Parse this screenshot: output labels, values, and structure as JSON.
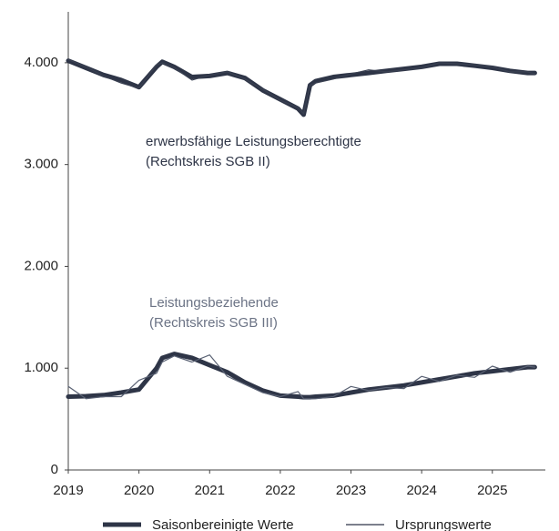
{
  "chart_data": {
    "type": "line",
    "x": [
      2019,
      2019.25,
      2019.5,
      2019.75,
      2020,
      2020.25,
      2020.33,
      2020.5,
      2020.75,
      2021,
      2021.25,
      2021.5,
      2021.75,
      2022,
      2022.25,
      2022.33,
      2022.42,
      2022.5,
      2022.75,
      2023,
      2023.25,
      2023.5,
      2023.75,
      2024,
      2024.25,
      2024.5,
      2024.75,
      2025,
      2025.25,
      2025.5,
      2025.6
    ],
    "series": [
      {
        "legend": 0,
        "color": "#2e3547",
        "width": 5,
        "values": [
          4020,
          3950,
          3880,
          3830,
          3760,
          3960,
          4010,
          3960,
          3860,
          3870,
          3900,
          3850,
          3730,
          3640,
          3550,
          3490,
          3780,
          3820,
          3860,
          3880,
          3900,
          3920,
          3940,
          3960,
          3990,
          3990,
          3970,
          3950,
          3920,
          3900,
          3900
        ]
      },
      {
        "legend": 0,
        "color": "#2e3547",
        "width": 5,
        "values": [
          720,
          725,
          735,
          760,
          790,
          1000,
          1100,
          1140,
          1100,
          1030,
          960,
          860,
          780,
          730,
          720,
          715,
          715,
          720,
          730,
          760,
          790,
          810,
          830,
          860,
          890,
          920,
          950,
          970,
          990,
          1010,
          1010
        ]
      },
      {
        "legend": 1,
        "color": "#3a4152",
        "width": 1.2,
        "values": [
          4030,
          3960,
          3870,
          3800,
          3750,
          3980,
          4000,
          3950,
          3830,
          3880,
          3910,
          3840,
          3740,
          3630,
          3560,
          3500,
          3780,
          3800,
          3840,
          3890,
          3930,
          3910,
          3930,
          3950,
          4000,
          3990,
          3980,
          3960,
          3910,
          3910,
          3890
        ]
      },
      {
        "legend": 1,
        "color": "#5a6274",
        "width": 1.2,
        "values": [
          820,
          700,
          720,
          720,
          880,
          950,
          1060,
          1120,
          1060,
          1130,
          920,
          840,
          760,
          720,
          770,
          700,
          700,
          700,
          720,
          820,
          780,
          810,
          800,
          920,
          870,
          930,
          910,
          1020,
          960,
          1020,
          1010
        ]
      }
    ],
    "legend": [
      {
        "name": "Saisonbereinigte Werte",
        "color": "#2e3547",
        "width": 5
      },
      {
        "name": "Ursprungswerte",
        "color": "#2e3547",
        "width": 1.2
      }
    ],
    "annotations": [
      [
        "erwerbsfähige Leistungsberechtigte",
        "(Rechtskreis SGB II)"
      ],
      [
        "Leistungsbeziehende",
        "(Rechtskreis SGB III)"
      ]
    ],
    "xlim": [
      2019,
      2025.75
    ],
    "xticks": [
      2019,
      2020,
      2021,
      2022,
      2023,
      2024,
      2025
    ],
    "ylim": [
      0,
      4500
    ],
    "yticks": [
      0,
      {
        "value": 1000,
        "label": "1.000"
      },
      {
        "value": 2000,
        "label": "2.000"
      },
      {
        "value": 3000,
        "label": "3.000"
      },
      {
        "value": 4000,
        "label": "4.000"
      }
    ]
  }
}
